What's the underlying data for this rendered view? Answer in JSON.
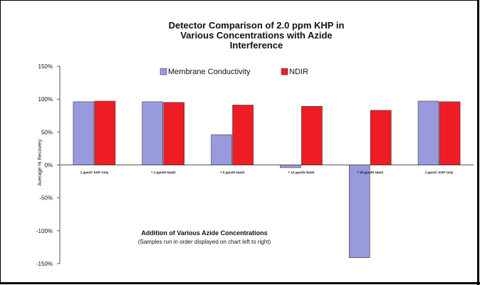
{
  "chart_data": {
    "type": "bar",
    "title": "Detector Comparison of 2.0 ppm KHP in Various Concentrations with Azide Interference",
    "title_lines": [
      "Detector Comparison of 2.0 ppm KHP in",
      "Various Concentrations with Azide",
      "Interference"
    ],
    "categories": [
      "2 ppm/C KHP Only",
      "+ 2 ppm/N NaN3",
      "+ 5 ppm/N NaN3",
      "+ 10 ppm/N NaN3",
      "+ 50 ppm/N NaN3",
      "2 ppm/C KHP Only"
    ],
    "series": [
      {
        "name": "Membrane Conductivity",
        "color": "#9999dd",
        "values": [
          96,
          96,
          46,
          -4,
          -141,
          97
        ]
      },
      {
        "name": "NDIR",
        "color": "#ee1c24",
        "values": [
          97,
          95,
          91,
          89,
          83,
          96
        ]
      }
    ],
    "ylabel": "Average % Recovery",
    "xlabel": "Addition of Various Azide Concentrations",
    "xlabel_sub": "(Samples run in order displayed on chart left to right)",
    "ylim": [
      -150,
      150
    ],
    "yticks": [
      150,
      100,
      50,
      0,
      -50,
      -100,
      -150
    ],
    "ytick_labels": [
      "150%",
      "100%",
      "50%",
      "0%",
      "-50%",
      "-100%",
      "-150%"
    ],
    "grid": false,
    "legend_position": "top-center"
  }
}
